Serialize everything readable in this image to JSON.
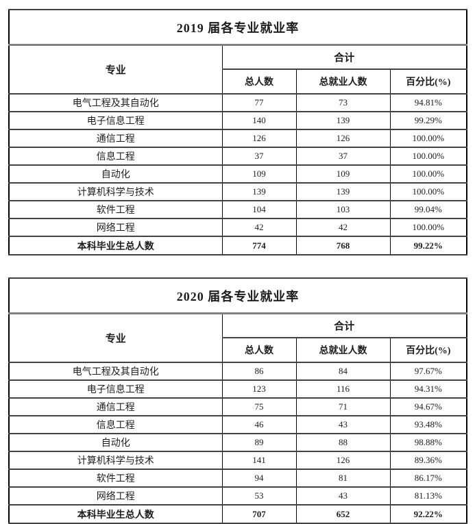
{
  "colors": {
    "background": "#ffffff",
    "text": "#1c1c1c",
    "outer_border": "#000000",
    "row_line": "#414141",
    "title_rule": "#808080"
  },
  "tables": [
    {
      "title": "2019 届各专业就业率",
      "header": {
        "major_label": "专业",
        "group_label": "合计",
        "col_total": "总人数",
        "col_employed": "总就业人数",
        "col_percent": "百分比(%)"
      },
      "rows": [
        {
          "major": "电气工程及其自动化",
          "total": "77",
          "employed": "73",
          "percent": "94.81%"
        },
        {
          "major": "电子信息工程",
          "total": "140",
          "employed": "139",
          "percent": "99.29%"
        },
        {
          "major": "通信工程",
          "total": "126",
          "employed": "126",
          "percent": "100.00%"
        },
        {
          "major": "信息工程",
          "total": "37",
          "employed": "37",
          "percent": "100.00%"
        },
        {
          "major": "自动化",
          "total": "109",
          "employed": "109",
          "percent": "100.00%"
        },
        {
          "major": "计算机科学与技术",
          "total": "139",
          "employed": "139",
          "percent": "100.00%"
        },
        {
          "major": "软件工程",
          "total": "104",
          "employed": "103",
          "percent": "99.04%"
        },
        {
          "major": "网络工程",
          "total": "42",
          "employed": "42",
          "percent": "100.00%"
        }
      ],
      "totals": {
        "major": "本科毕业生总人数",
        "total": "774",
        "employed": "768",
        "percent": "99.22%"
      }
    },
    {
      "title": "2020 届各专业就业率",
      "header": {
        "major_label": "专业",
        "group_label": "合计",
        "col_total": "总人数",
        "col_employed": "总就业人数",
        "col_percent": "百分比(%)"
      },
      "rows": [
        {
          "major": "电气工程及其自动化",
          "total": "86",
          "employed": "84",
          "percent": "97.67%"
        },
        {
          "major": "电子信息工程",
          "total": "123",
          "employed": "116",
          "percent": "94.31%"
        },
        {
          "major": "通信工程",
          "total": "75",
          "employed": "71",
          "percent": "94.67%"
        },
        {
          "major": "信息工程",
          "total": "46",
          "employed": "43",
          "percent": "93.48%"
        },
        {
          "major": "自动化",
          "total": "89",
          "employed": "88",
          "percent": "98.88%"
        },
        {
          "major": "计算机科学与技术",
          "total": "141",
          "employed": "126",
          "percent": "89.36%"
        },
        {
          "major": "软件工程",
          "total": "94",
          "employed": "81",
          "percent": "86.17%"
        },
        {
          "major": "网络工程",
          "total": "53",
          "employed": "43",
          "percent": "81.13%"
        }
      ],
      "totals": {
        "major": "本科毕业生总人数",
        "total": "707",
        "employed": "652",
        "percent": "92.22%"
      }
    }
  ]
}
